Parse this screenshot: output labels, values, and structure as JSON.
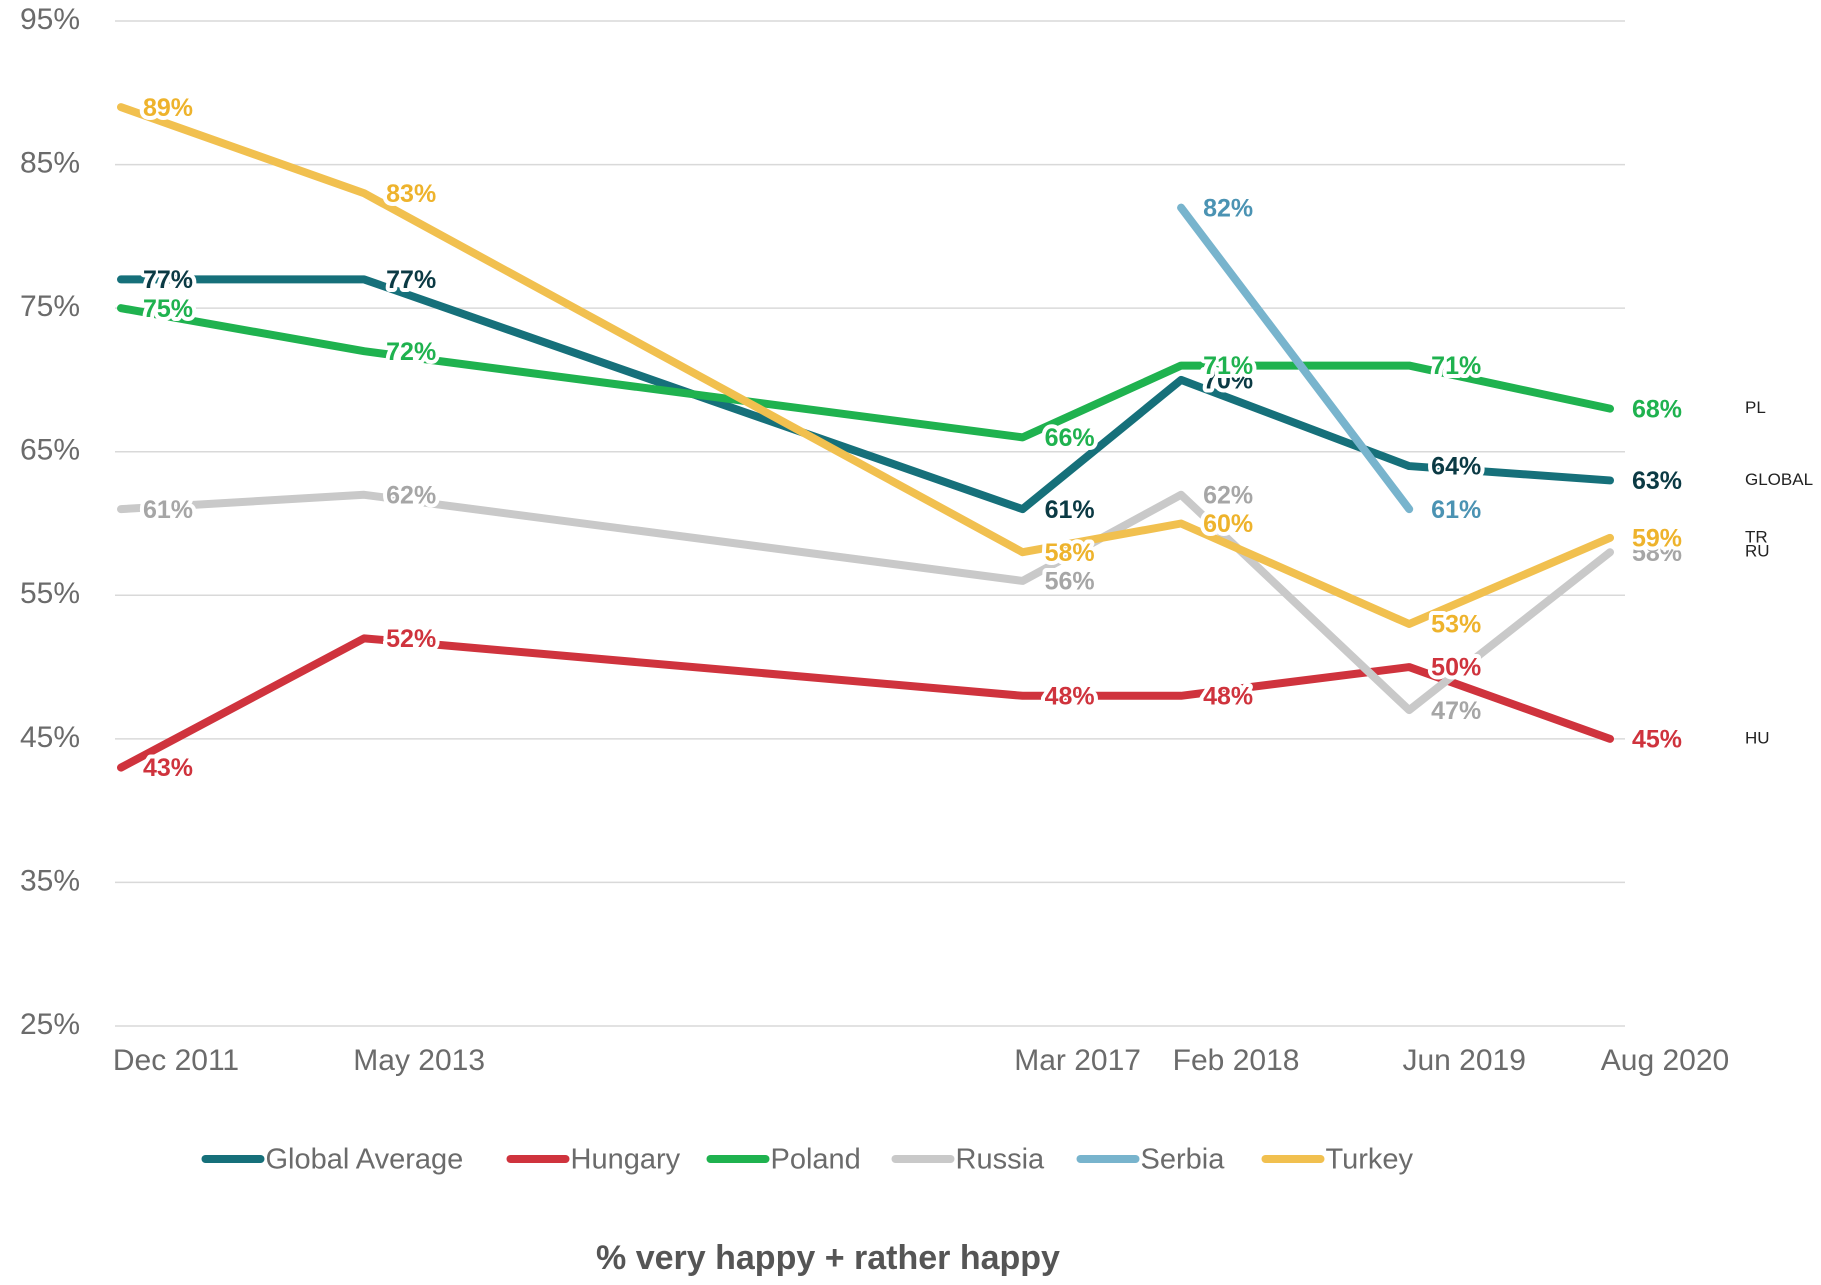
{
  "chart_data": {
    "type": "line",
    "title": "% very happy + rather happy",
    "x": [
      "Dec 2011",
      "May 2013",
      "Mar 2017",
      "Feb 2018",
      "Jun 2019",
      "Aug 2020"
    ],
    "ylim": [
      25,
      95
    ],
    "yticks": [
      {
        "value": 25,
        "label": "25%"
      },
      {
        "value": 35,
        "label": "35%"
      },
      {
        "value": 45,
        "label": "45%"
      },
      {
        "value": 55,
        "label": "55%"
      },
      {
        "value": 65,
        "label": "65%"
      },
      {
        "value": 75,
        "label": "75%"
      },
      {
        "value": 85,
        "label": "85%"
      },
      {
        "value": 95,
        "label": "95%"
      }
    ],
    "grid": true,
    "legend": "bottom",
    "series": [
      {
        "name": "Global Average",
        "color": "#16707a",
        "label_color": "#0b3a44",
        "tag": "GLOBAL",
        "values": [
          77,
          77,
          61,
          70,
          64,
          63
        ],
        "value_labels": [
          "77%",
          "77%",
          "61%",
          "70%",
          "64%",
          "63%"
        ]
      },
      {
        "name": "Hungary",
        "color": "#cf333d",
        "label_color": "#cf333d",
        "tag": "HU",
        "values": [
          43,
          52,
          48,
          48,
          50,
          45
        ],
        "value_labels": [
          "43%",
          "52%",
          "48%",
          "48%",
          "50%",
          "45%"
        ]
      },
      {
        "name": "Poland",
        "color": "#1fb24f",
        "label_color": "#1fb24f",
        "tag": "PL",
        "values": [
          75,
          72,
          66,
          71,
          71,
          68
        ],
        "value_labels": [
          "75%",
          "72%",
          "66%",
          "71%",
          "71%",
          "68%"
        ]
      },
      {
        "name": "Russia",
        "color": "#c9c9c9",
        "label_color": "#a6a6a6",
        "tag": "RU",
        "values": [
          61,
          62,
          56,
          62,
          47,
          58
        ],
        "value_labels": [
          "61%",
          "62%",
          "56%",
          "62%",
          "47%",
          "58%"
        ]
      },
      {
        "name": "Serbia",
        "color": "#78b4cd",
        "label_color": "#4b93b3",
        "values": [
          null,
          null,
          null,
          82,
          61,
          null
        ],
        "value_labels": [
          null,
          null,
          null,
          "82%",
          "61%",
          null
        ]
      },
      {
        "name": "Turkey",
        "color": "#f1c04f",
        "label_color": "#eeb32c",
        "tag": "TR",
        "values": [
          89,
          83,
          58,
          60,
          53,
          59
        ],
        "value_labels": [
          "89%",
          "83%",
          "58%",
          "60%",
          "53%",
          "59%"
        ]
      }
    ]
  }
}
